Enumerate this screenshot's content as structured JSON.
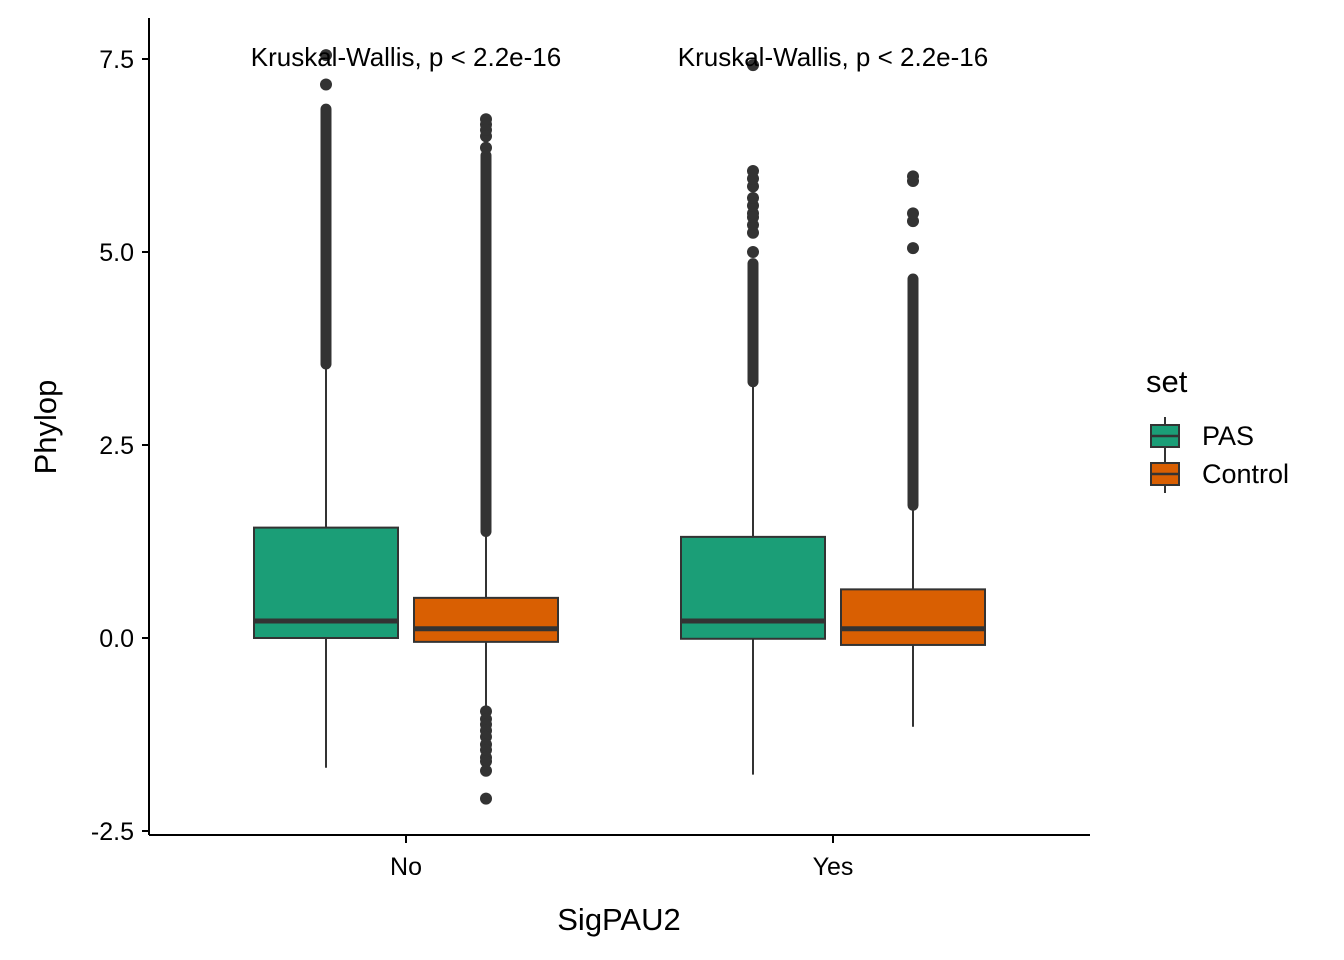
{
  "chart_data": {
    "type": "box",
    "xlabel": "SigPAU2",
    "ylabel": "Phylop",
    "categories": [
      "No",
      "Yes"
    ],
    "ylim": [
      -2.5,
      8.0
    ],
    "yticks": [
      -2.5,
      0.0,
      2.5,
      5.0,
      7.5
    ],
    "ytick_labels": [
      "-2.5",
      "0.0",
      "2.5",
      "5.0",
      "7.5"
    ],
    "grid": false,
    "legend": {
      "title": "set",
      "position": "right",
      "items": [
        {
          "label": "PAS",
          "color": "#1b9e77"
        },
        {
          "label": "Control",
          "color": "#d95f02"
        }
      ]
    },
    "annotations": [
      {
        "category": "No",
        "text": "Kruskal-Wallis, p < 2.2e-16"
      },
      {
        "category": "Yes",
        "text": "Kruskal-Wallis, p < 2.2e-16"
      }
    ],
    "series": [
      {
        "name": "PAS",
        "color": "#1b9e77",
        "boxes": [
          {
            "category": "No",
            "q1": 0.0,
            "median": 0.22,
            "q3": 1.43,
            "whisker_low": -1.68,
            "whisker_high": 3.55,
            "outliers_range": [
              3.55,
              6.85
            ],
            "outliers": [
              7.17,
              7.55
            ]
          },
          {
            "category": "Yes",
            "q1": -0.01,
            "median": 0.22,
            "q3": 1.31,
            "whisker_low": -1.77,
            "whisker_high": 3.32,
            "outliers_range": [
              3.32,
              4.85
            ],
            "outliers": [
              5.0,
              5.25,
              5.35,
              5.45,
              5.5,
              5.6,
              5.7,
              5.85,
              5.95,
              6.05,
              7.42
            ]
          }
        ]
      },
      {
        "name": "Control",
        "color": "#d95f02",
        "boxes": [
          {
            "category": "No",
            "q1": -0.05,
            "median": 0.12,
            "q3": 0.52,
            "whisker_low": -0.92,
            "whisker_high": 1.38,
            "outliers_range": [
              1.38,
              6.25
            ],
            "outliers": [
              6.35,
              6.5,
              6.58,
              6.65,
              6.72,
              -0.95,
              -1.05,
              -1.12,
              -1.2,
              -1.28,
              -1.38,
              -1.45,
              -1.55,
              -1.6,
              -1.72,
              -2.08
            ]
          },
          {
            "category": "Yes",
            "q1": -0.09,
            "median": 0.12,
            "q3": 0.63,
            "whisker_low": -1.15,
            "whisker_high": 1.72,
            "outliers_range": [
              1.72,
              4.65
            ],
            "outliers": [
              5.05,
              5.4,
              5.5,
              5.92,
              5.98
            ]
          }
        ]
      }
    ]
  }
}
